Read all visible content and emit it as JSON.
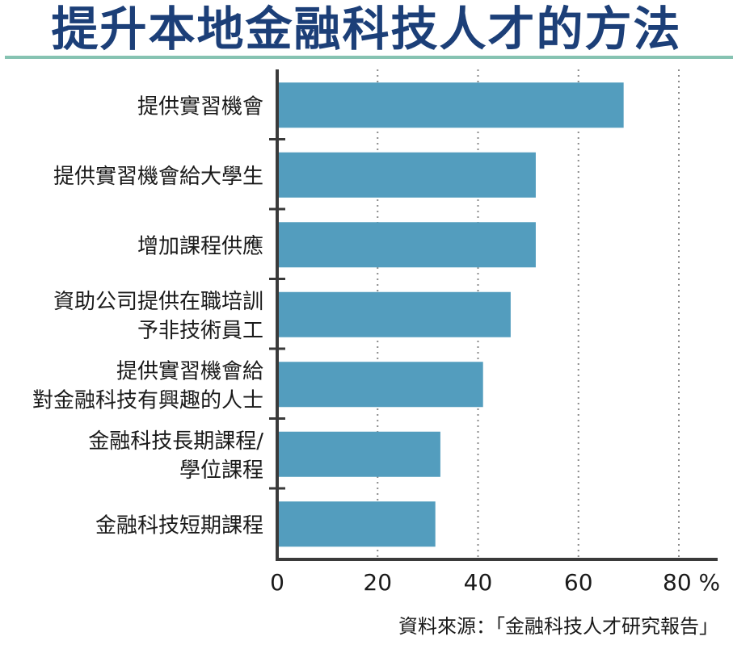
{
  "title": "提升本地金融科技人才的方法",
  "source": "資料來源：「金融科技人才研究報告」",
  "colors": {
    "bar": "#539dbe",
    "title": "#1c3f78",
    "rule": "#86c3b2",
    "axis": "#3a3a3a",
    "grid": "#8a8a8a"
  },
  "chart_data": {
    "type": "bar",
    "orientation": "horizontal",
    "categories": [
      [
        "提供實習機會"
      ],
      [
        "提供實習機會給大學生"
      ],
      [
        "增加課程供應"
      ],
      [
        "資助公司提供在職培訓",
        "予非技術員工"
      ],
      [
        "提供實習機會給",
        "對金融科技有興趣的人士"
      ],
      [
        "金融科技長期課程/",
        "學位課程"
      ],
      [
        "金融科技短期課程"
      ]
    ],
    "values": [
      69,
      51.5,
      51.5,
      46.5,
      41,
      32.5,
      31.5
    ],
    "xlim": [
      0,
      80
    ],
    "xticks": [
      "0",
      "20",
      "40",
      "60",
      "80 %"
    ],
    "grid": "vertical dotted",
    "unit": "%"
  }
}
